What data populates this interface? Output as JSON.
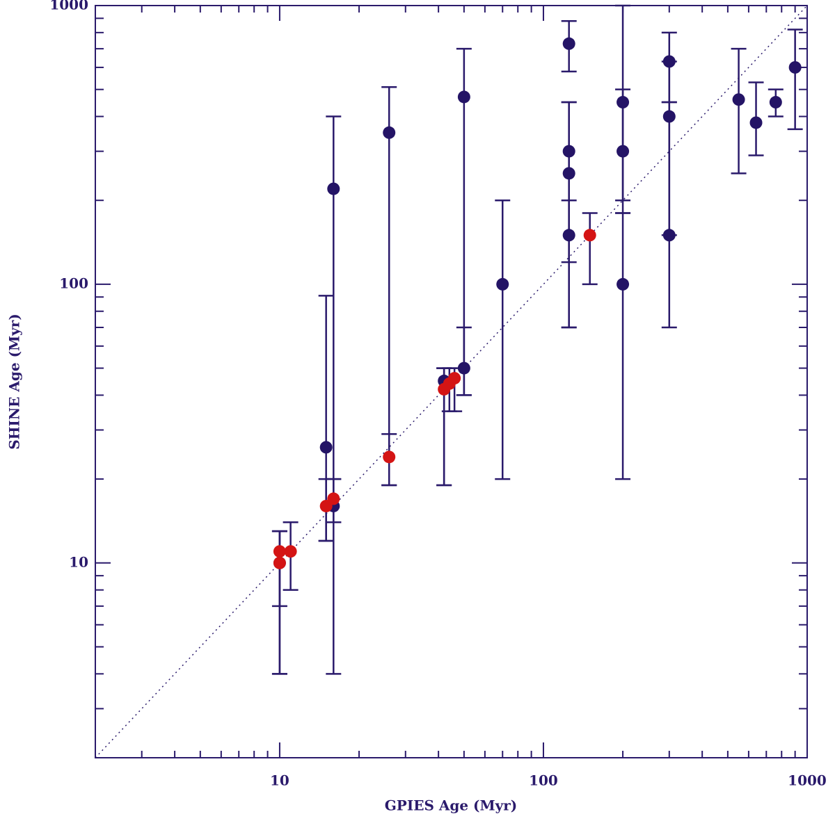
{
  "chart_data": {
    "type": "scatter",
    "x_label": "GPIES Age (Myr)",
    "y_label": "SHINE Age (Myr)",
    "log_x": true,
    "log_y": true,
    "xlim": [
      2,
      1000
    ],
    "ylim": [
      2,
      1000
    ],
    "xticks": [
      10,
      100,
      1000
    ],
    "yticks": [
      10,
      100,
      1000
    ],
    "x_minor_ticks": [
      2,
      3,
      4,
      5,
      6,
      7,
      8,
      9,
      20,
      30,
      40,
      50,
      60,
      70,
      80,
      90,
      200,
      300,
      400,
      500,
      600,
      700,
      800,
      900
    ],
    "y_minor_ticks": [
      2,
      3,
      4,
      5,
      6,
      7,
      8,
      9,
      20,
      30,
      40,
      50,
      60,
      70,
      80,
      90,
      200,
      300,
      400,
      500,
      600,
      700,
      800,
      900
    ],
    "axis_color": "#2a1a6b",
    "errorbar_color": "#2a1a6b",
    "series": [
      {
        "color": "#241466",
        "x": [
          10,
          15,
          16,
          16,
          26,
          42,
          50,
          50,
          70,
          125,
          125,
          125,
          125,
          200,
          200,
          200,
          300,
          300,
          300,
          550,
          640,
          760,
          900
        ],
        "values": [
          10,
          26,
          220,
          16,
          350,
          45,
          470,
          50,
          100,
          730,
          300,
          250,
          150,
          450,
          300,
          100,
          630,
          400,
          150,
          460,
          380,
          450,
          600
        ],
        "err_low": [
          4,
          12,
          4,
          14,
          19,
          19,
          40,
          40,
          20,
          580,
          120,
          70,
          70,
          200,
          180,
          20,
          450,
          150,
          70,
          250,
          290,
          400,
          360
        ],
        "err_high": [
          13,
          91,
          400,
          20,
          510,
          50,
          700,
          70,
          200,
          880,
          450,
          450,
          200,
          1000,
          500,
          180,
          800,
          630,
          450,
          700,
          530,
          500,
          820
        ]
      },
      {
        "color": "#d41414",
        "x": [
          10,
          10,
          11,
          15,
          16,
          26,
          42,
          44,
          46,
          150
        ],
        "values": [
          10,
          11,
          11,
          16,
          17,
          24,
          42,
          44,
          46,
          150
        ],
        "err_low": [
          7,
          4,
          8,
          12,
          14,
          19,
          19,
          35,
          35,
          100
        ],
        "err_high": [
          13,
          13,
          14,
          20,
          20,
          29,
          50,
          50,
          50,
          180
        ]
      }
    ]
  }
}
